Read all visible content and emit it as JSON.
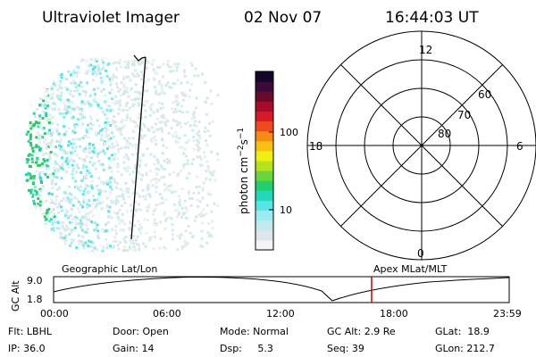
{
  "header": {
    "instrument": "Ultraviolet Imager",
    "date": "02 Nov 07",
    "time": "16:44:03 UT"
  },
  "colorbar": {
    "unit_label": "photon cm",
    "exp1": "−2",
    "unit_s": "s",
    "exp2": "−1",
    "ticks": [
      "100",
      "10"
    ],
    "tick_values": [
      100,
      10
    ],
    "range": [
      2,
      800
    ],
    "colors": [
      "#f4f4f4",
      "#dfe6ea",
      "#c2e9ee",
      "#9cecef",
      "#55e6ea",
      "#1fd9b8",
      "#22cf6d",
      "#6bd63a",
      "#b6e21e",
      "#f0ef12",
      "#f8c010",
      "#f68a12",
      "#ee4a1c",
      "#d61b28",
      "#a70c2a",
      "#6a0a2a",
      "#3a0a3d",
      "#14052a"
    ]
  },
  "polar": {
    "labels": {
      "top": "12",
      "bottom": "0",
      "left": "18",
      "right": "6"
    },
    "ring_labels": [
      "60",
      "70",
      "80"
    ]
  },
  "timeline": {
    "left_label": "Geographic Lat/Lon",
    "right_label": "Apex MLat/MLT",
    "axis_label": "GC Alt",
    "y_ticks": [
      "9.0",
      "1.8"
    ],
    "x_ticks": [
      "00:00",
      "06:00",
      "12:00",
      "18:00",
      "23:59"
    ],
    "current_marker_color": "#cc0000"
  },
  "status": {
    "flt": "Flt: LBHL",
    "ip": "IP: 36.0",
    "door": "Door: Open",
    "gain": "Gain: 14",
    "mode": "Mode: Normal",
    "dsp": "Dsp:     5.3",
    "gc_alt": "GC Alt: 2.9 Re",
    "seq": "Seq: 39",
    "glat": "GLat:  18.9",
    "glon": "GLon: 212.7"
  }
}
